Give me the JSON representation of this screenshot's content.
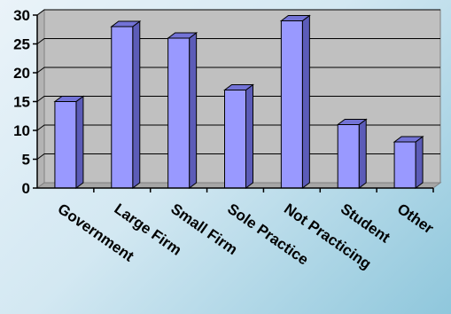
{
  "chart_data": {
    "type": "bar",
    "title": "",
    "xlabel": "",
    "ylabel": "",
    "categories": [
      "Government",
      "Large Firm",
      "Small Firm",
      "Sole Practice",
      "Not Practicing",
      "Student",
      "Other"
    ],
    "values": [
      15,
      28,
      26,
      17,
      29,
      11,
      8
    ],
    "ylim": [
      0,
      30
    ],
    "yticks": [
      0,
      5,
      10,
      15,
      20,
      25,
      30
    ],
    "grid": true,
    "three_d": true,
    "colors": {
      "bar_front": "#9999ff",
      "bar_side": "#5c5cb8",
      "bar_top": "#7373d6",
      "wall": "#c0c0c0",
      "floor": "#a6a6a6",
      "gridline": "#000000"
    }
  }
}
